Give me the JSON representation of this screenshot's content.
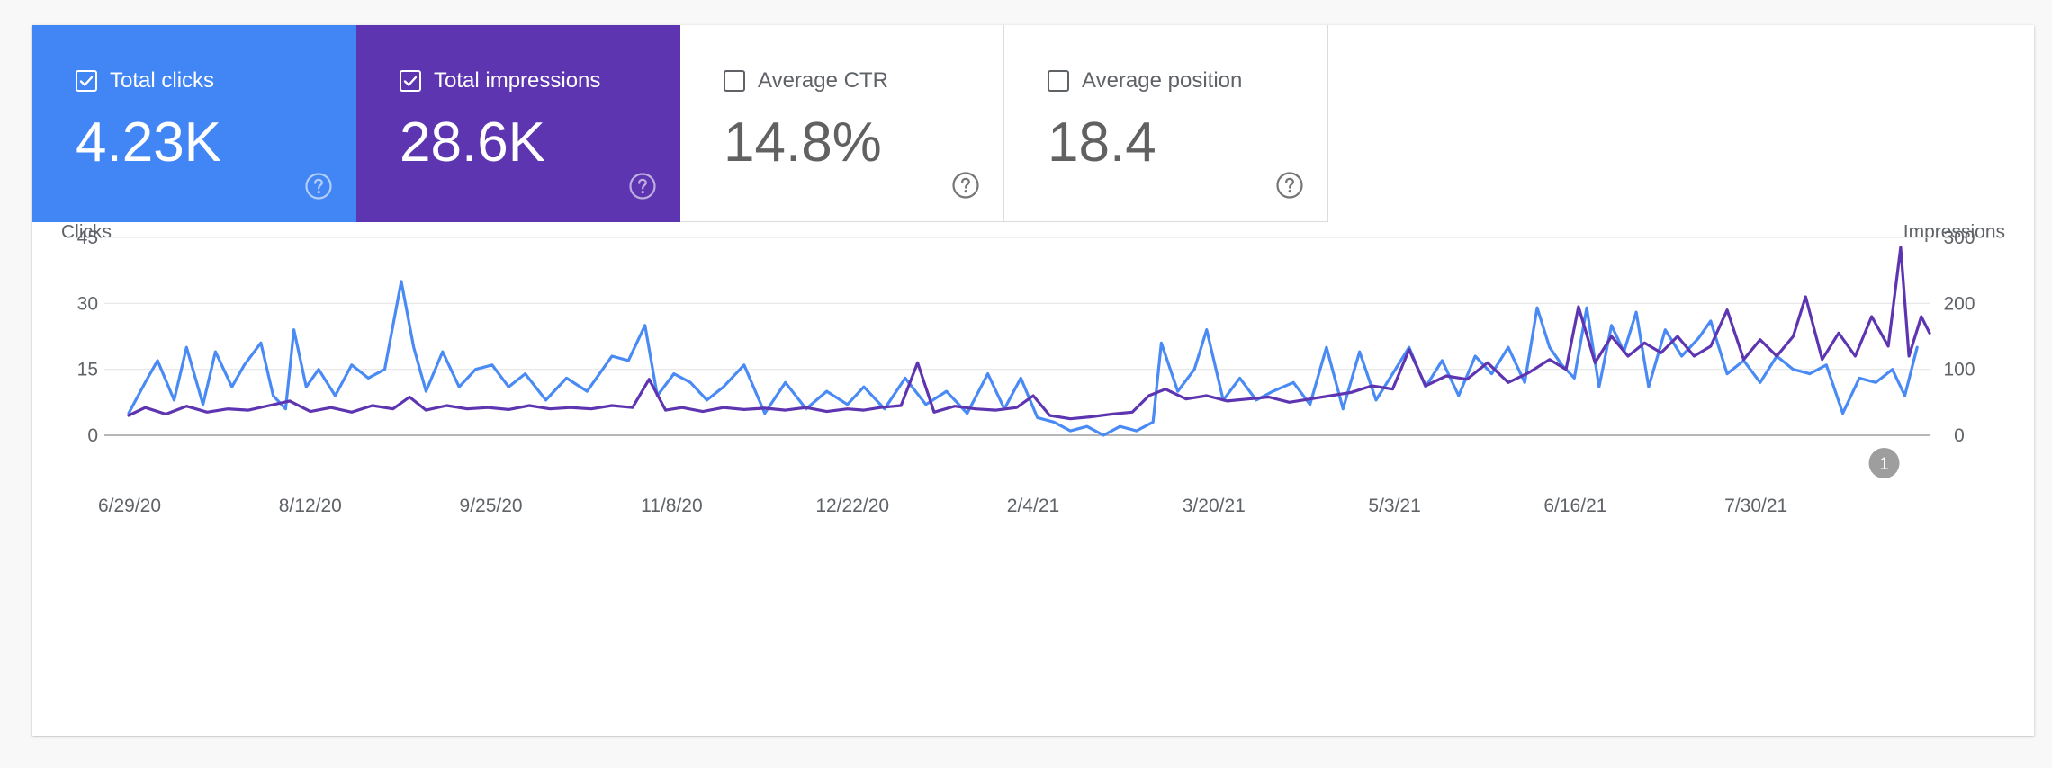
{
  "colors": {
    "clicks": "#4a8af4",
    "impressions": "#5e35b1",
    "text_dark": "#5f6368",
    "grid": "#e6e6e6",
    "baseline": "#9e9e9e",
    "annotation": "#9e9e9e"
  },
  "tiles": [
    {
      "label": "Total clicks",
      "value": "4.23K",
      "checked": true,
      "color": "#4285f4",
      "icon": "help-circle-icon"
    },
    {
      "label": "Total impressions",
      "value": "28.6K",
      "checked": true,
      "color": "#5e35b1",
      "icon": "help-circle-icon"
    },
    {
      "label": "Average CTR",
      "value": "14.8%",
      "checked": false,
      "color": "#ffffff",
      "icon": "help-circle-icon"
    },
    {
      "label": "Average position",
      "value": "18.4",
      "checked": false,
      "color": "#ffffff",
      "icon": "help-circle-icon"
    }
  ],
  "chart_data": {
    "type": "line",
    "left_axis": {
      "label": "Clicks",
      "ticks": [
        "0",
        "15",
        "30",
        "45"
      ],
      "ylim": [
        0,
        45
      ]
    },
    "right_axis": {
      "label": "Impressions",
      "ticks": [
        "0",
        "100",
        "200",
        "300"
      ],
      "ylim": [
        0,
        300
      ]
    },
    "x_tick_labels": [
      "6/29/20",
      "8/12/20",
      "9/25/20",
      "11/8/20",
      "12/22/20",
      "2/4/21",
      "3/20/21",
      "5/3/21",
      "6/16/21",
      "7/30/21"
    ],
    "x_range": [
      "6/29/20",
      "9/8/21"
    ],
    "grid": true,
    "annotation": {
      "label": "1",
      "date": "8/28/21"
    },
    "series": [
      {
        "name": "Clicks",
        "axis": "left",
        "color": "#4a8af4",
        "points": [
          [
            "6/29/20",
            5
          ],
          [
            "7/3/20",
            12
          ],
          [
            "7/6/20",
            17
          ],
          [
            "7/10/20",
            8
          ],
          [
            "7/13/20",
            20
          ],
          [
            "7/17/20",
            7
          ],
          [
            "7/20/20",
            19
          ],
          [
            "7/24/20",
            11
          ],
          [
            "7/27/20",
            16
          ],
          [
            "7/31/20",
            21
          ],
          [
            "8/3/20",
            9
          ],
          [
            "8/6/20",
            6
          ],
          [
            "8/8/20",
            24
          ],
          [
            "8/11/20",
            11
          ],
          [
            "8/14/20",
            15
          ],
          [
            "8/18/20",
            9
          ],
          [
            "8/22/20",
            16
          ],
          [
            "8/26/20",
            13
          ],
          [
            "8/30/20",
            15
          ],
          [
            "9/3/20",
            35
          ],
          [
            "9/6/20",
            20
          ],
          [
            "9/9/20",
            10
          ],
          [
            "9/13/20",
            19
          ],
          [
            "9/17/20",
            11
          ],
          [
            "9/21/20",
            15
          ],
          [
            "9/25/20",
            16
          ],
          [
            "9/29/20",
            11
          ],
          [
            "10/3/20",
            14
          ],
          [
            "10/8/20",
            8
          ],
          [
            "10/13/20",
            13
          ],
          [
            "10/18/20",
            10
          ],
          [
            "10/24/20",
            18
          ],
          [
            "10/28/20",
            17
          ],
          [
            "11/1/20",
            25
          ],
          [
            "11/4/20",
            9
          ],
          [
            "11/8/20",
            14
          ],
          [
            "11/12/20",
            12
          ],
          [
            "11/16/20",
            8
          ],
          [
            "11/20/20",
            11
          ],
          [
            "11/25/20",
            16
          ],
          [
            "11/30/20",
            5
          ],
          [
            "12/5/20",
            12
          ],
          [
            "12/10/20",
            6
          ],
          [
            "12/15/20",
            10
          ],
          [
            "12/20/20",
            7
          ],
          [
            "12/24/20",
            11
          ],
          [
            "12/29/20",
            6
          ],
          [
            "1/3/21",
            13
          ],
          [
            "1/8/21",
            7
          ],
          [
            "1/13/21",
            10
          ],
          [
            "1/18/21",
            5
          ],
          [
            "1/23/21",
            14
          ],
          [
            "1/27/21",
            6
          ],
          [
            "1/31/21",
            13
          ],
          [
            "2/4/21",
            4
          ],
          [
            "2/8/21",
            3
          ],
          [
            "2/12/21",
            1
          ],
          [
            "2/16/21",
            2
          ],
          [
            "2/20/21",
            0
          ],
          [
            "2/24/21",
            2
          ],
          [
            "2/28/21",
            1
          ],
          [
            "3/4/21",
            3
          ],
          [
            "3/6/21",
            21
          ],
          [
            "3/10/21",
            10
          ],
          [
            "3/14/21",
            15
          ],
          [
            "3/17/21",
            24
          ],
          [
            "3/21/21",
            8
          ],
          [
            "3/25/21",
            13
          ],
          [
            "3/29/21",
            8
          ],
          [
            "4/2/21",
            10
          ],
          [
            "4/7/21",
            12
          ],
          [
            "4/11/21",
            7
          ],
          [
            "4/15/21",
            20
          ],
          [
            "4/19/21",
            6
          ],
          [
            "4/23/21",
            19
          ],
          [
            "4/27/21",
            8
          ],
          [
            "5/1/21",
            14
          ],
          [
            "5/5/21",
            20
          ],
          [
            "5/9/21",
            11
          ],
          [
            "5/13/21",
            17
          ],
          [
            "5/17/21",
            9
          ],
          [
            "5/21/21",
            18
          ],
          [
            "5/25/21",
            14
          ],
          [
            "5/29/21",
            20
          ],
          [
            "6/2/21",
            12
          ],
          [
            "6/5/21",
            29
          ],
          [
            "6/8/21",
            20
          ],
          [
            "6/11/21",
            16
          ],
          [
            "6/14/21",
            13
          ],
          [
            "6/17/21",
            29
          ],
          [
            "6/20/21",
            11
          ],
          [
            "6/23/21",
            25
          ],
          [
            "6/26/21",
            19
          ],
          [
            "6/29/21",
            28
          ],
          [
            "7/2/21",
            11
          ],
          [
            "7/6/21",
            24
          ],
          [
            "7/10/21",
            18
          ],
          [
            "7/14/21",
            22
          ],
          [
            "7/17/21",
            26
          ],
          [
            "7/21/21",
            14
          ],
          [
            "7/25/21",
            17
          ],
          [
            "7/29/21",
            12
          ],
          [
            "8/2/21",
            18
          ],
          [
            "8/6/21",
            15
          ],
          [
            "8/10/21",
            14
          ],
          [
            "8/14/21",
            16
          ],
          [
            "8/18/21",
            5
          ],
          [
            "8/22/21",
            13
          ],
          [
            "8/26/21",
            12
          ],
          [
            "8/30/21",
            15
          ],
          [
            "9/2/21",
            9
          ],
          [
            "9/5/21",
            20
          ]
        ]
      },
      {
        "name": "Impressions",
        "axis": "right",
        "color": "#5e35b1",
        "points": [
          [
            "6/29/20",
            30
          ],
          [
            "7/3/20",
            42
          ],
          [
            "7/8/20",
            32
          ],
          [
            "7/13/20",
            44
          ],
          [
            "7/18/20",
            35
          ],
          [
            "7/23/20",
            40
          ],
          [
            "7/28/20",
            38
          ],
          [
            "8/2/20",
            45
          ],
          [
            "8/7/20",
            52
          ],
          [
            "8/12/20",
            36
          ],
          [
            "8/17/20",
            42
          ],
          [
            "8/22/20",
            35
          ],
          [
            "8/27/20",
            45
          ],
          [
            "9/1/20",
            40
          ],
          [
            "9/5/20",
            58
          ],
          [
            "9/9/20",
            38
          ],
          [
            "9/14/20",
            45
          ],
          [
            "9/19/20",
            40
          ],
          [
            "9/24/20",
            42
          ],
          [
            "9/29/20",
            39
          ],
          [
            "10/4/20",
            45
          ],
          [
            "10/9/20",
            40
          ],
          [
            "10/14/20",
            42
          ],
          [
            "10/19/20",
            40
          ],
          [
            "10/24/20",
            45
          ],
          [
            "10/29/20",
            42
          ],
          [
            "11/2/20",
            85
          ],
          [
            "11/6/20",
            38
          ],
          [
            "11/10/20",
            42
          ],
          [
            "11/15/20",
            36
          ],
          [
            "11/20/20",
            42
          ],
          [
            "11/25/20",
            39
          ],
          [
            "11/30/20",
            41
          ],
          [
            "12/5/20",
            38
          ],
          [
            "12/10/20",
            42
          ],
          [
            "12/15/20",
            36
          ],
          [
            "12/20/20",
            40
          ],
          [
            "12/24/20",
            38
          ],
          [
            "12/28/20",
            42
          ],
          [
            "1/2/21",
            45
          ],
          [
            "1/6/21",
            110
          ],
          [
            "1/10/21",
            35
          ],
          [
            "1/15/21",
            44
          ],
          [
            "1/20/21",
            40
          ],
          [
            "1/25/21",
            38
          ],
          [
            "1/30/21",
            42
          ],
          [
            "2/3/21",
            60
          ],
          [
            "2/7/21",
            30
          ],
          [
            "2/12/21",
            25
          ],
          [
            "2/17/21",
            28
          ],
          [
            "2/22/21",
            32
          ],
          [
            "2/27/21",
            35
          ],
          [
            "3/3/21",
            60
          ],
          [
            "3/7/21",
            70
          ],
          [
            "3/12/21",
            55
          ],
          [
            "3/17/21",
            60
          ],
          [
            "3/22/21",
            52
          ],
          [
            "3/27/21",
            55
          ],
          [
            "4/1/21",
            58
          ],
          [
            "4/6/21",
            50
          ],
          [
            "4/11/21",
            55
          ],
          [
            "4/16/21",
            60
          ],
          [
            "4/21/21",
            65
          ],
          [
            "4/26/21",
            75
          ],
          [
            "5/1/21",
            70
          ],
          [
            "5/5/21",
            130
          ],
          [
            "5/9/21",
            75
          ],
          [
            "5/14/21",
            90
          ],
          [
            "5/19/21",
            85
          ],
          [
            "5/24/21",
            110
          ],
          [
            "5/29/21",
            80
          ],
          [
            "6/3/21",
            95
          ],
          [
            "6/8/21",
            115
          ],
          [
            "6/12/21",
            100
          ],
          [
            "6/15/21",
            195
          ],
          [
            "6/19/21",
            110
          ],
          [
            "6/23/21",
            150
          ],
          [
            "6/27/21",
            120
          ],
          [
            "7/1/21",
            140
          ],
          [
            "7/5/21",
            125
          ],
          [
            "7/9/21",
            150
          ],
          [
            "7/13/21",
            120
          ],
          [
            "7/17/21",
            135
          ],
          [
            "7/21/21",
            190
          ],
          [
            "7/25/21",
            115
          ],
          [
            "7/29/21",
            145
          ],
          [
            "8/2/21",
            120
          ],
          [
            "8/6/21",
            150
          ],
          [
            "8/9/21",
            210
          ],
          [
            "8/13/21",
            115
          ],
          [
            "8/17/21",
            155
          ],
          [
            "8/21/21",
            120
          ],
          [
            "8/25/21",
            180
          ],
          [
            "8/29/21",
            135
          ],
          [
            "9/1/21",
            285
          ],
          [
            "9/3/21",
            120
          ],
          [
            "9/6/21",
            180
          ],
          [
            "9/8/21",
            155
          ]
        ]
      }
    ]
  }
}
